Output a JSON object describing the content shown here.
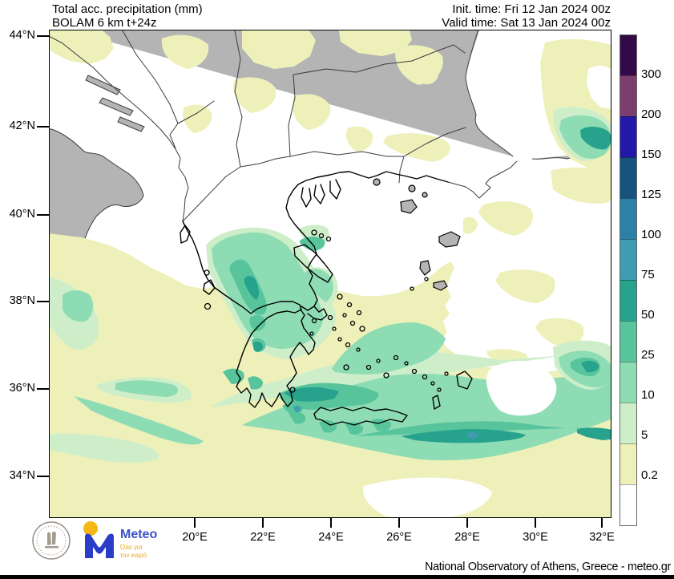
{
  "header": {
    "product": "Total acc. precipitation (mm)",
    "model": "BOLAM 6 km t+24z",
    "init_time": "Init. time: Fri 12 Jan 2024 00z",
    "valid_time": "Valid time: Sat 13 Jan 2024 00z"
  },
  "axes": {
    "lat_labels": [
      "44°N",
      "42°N",
      "40°N",
      "38°N",
      "36°N",
      "34°N"
    ],
    "lon_labels": [
      "20°E",
      "22°E",
      "24°E",
      "26°E",
      "28°E",
      "30°E",
      "32°E"
    ]
  },
  "colorbar": {
    "unit": "mm",
    "labels": [
      "300",
      "200",
      "150",
      "125",
      "100",
      "75",
      "50",
      "25",
      "10",
      "5",
      "0.2"
    ],
    "colors": [
      "#310a47",
      "#7c3e6e",
      "#2418ab",
      "#17537d",
      "#2e81a6",
      "#3f9cb1",
      "#27a28c",
      "#58c49c",
      "#8edcb4",
      "#cdeec9",
      "#eef0ba",
      "#ffffff"
    ]
  },
  "palette": {
    "sea": "#ffffff",
    "land": "#b4b4b4",
    "border": "#3c3c3c",
    "coast": "#000000",
    "y": "#eef0ba",
    "g1": "#cdeec9",
    "g2": "#8edcb4",
    "g3": "#58c49c",
    "g4": "#27a28c",
    "g5": "#3f9cb1"
  },
  "footer": {
    "credit": "National Observatory of Athens, Greece - meteo.gr",
    "logo_meteo": {
      "name": "Meteo",
      "tagline_line1": "Όλα για",
      "tagline_line2": "τον καιρό"
    }
  }
}
